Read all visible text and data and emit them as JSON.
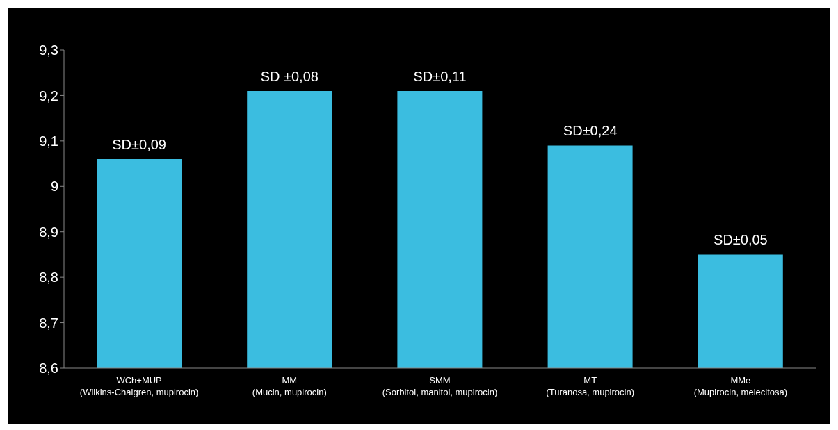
{
  "chart_data": {
    "type": "bar",
    "categories": [
      "WCh+MUP\n(Wilkins-Chalgren, mupirocin)",
      "MM\n(Mucin, mupirocin)",
      "SMM\n(Sorbitol, manitol, mupirocin)",
      "MT\n(Turanosa, mupirocin)",
      "MMe\n(Mupirocin, melecitosa)"
    ],
    "values": [
      9.06,
      9.21,
      9.21,
      9.09,
      8.85
    ],
    "color": "#3bbde0",
    "ylim": [
      8.6,
      9.3
    ],
    "yticks": [
      {
        "value": 8.6,
        "label": "8,6"
      },
      {
        "value": 8.7,
        "label": "8,7"
      },
      {
        "value": 8.8,
        "label": "8,8"
      },
      {
        "value": 8.9,
        "label": "8,9"
      },
      {
        "value": 9,
        "label": "9"
      },
      {
        "value": 9.1,
        "label": "9,1"
      },
      {
        "value": 9.2,
        "label": "9,2"
      },
      {
        "value": 9.3,
        "label": "9,3"
      }
    ],
    "grid": false,
    "legend": false,
    "annotations": [
      {
        "text": "SD±0,09",
        "x": "WCh+MUP\n(Wilkins-Chalgren, mupirocin)",
        "y": 9.06
      },
      {
        "text": "SD ±0,08",
        "x": "MM\n(Mucin, mupirocin)",
        "y": 9.21
      },
      {
        "text": "SD±0,11",
        "x": "SMM\n(Sorbitol, manitol, mupirocin)",
        "y": 9.21
      },
      {
        "text": "SD±0,24",
        "x": "MT\n(Turanosa, mupirocin)",
        "y": 9.09
      },
      {
        "text": "SD±0,05",
        "x": "MMe\n(Mupirocin, melecitosa)",
        "y": 8.85
      }
    ]
  }
}
